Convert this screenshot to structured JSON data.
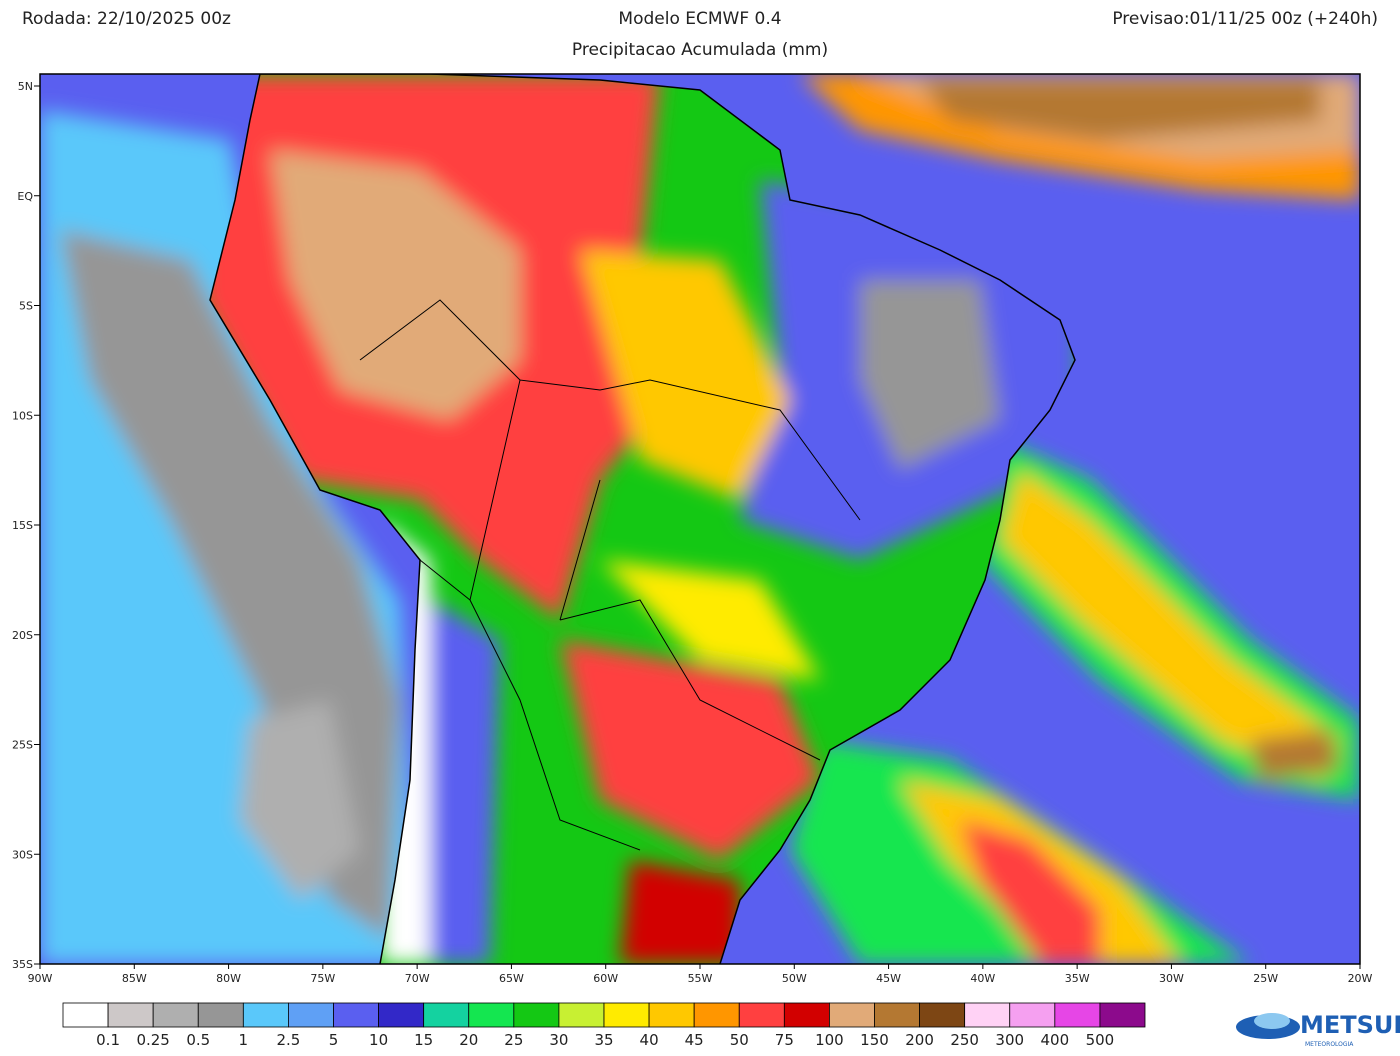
{
  "header": {
    "run": "Rodada: 22/10/2025 00z",
    "model": "Modelo ECMWF 0.4",
    "forecast": "Previsao:01/11/25 00z (+240h)",
    "subtitle": "Precipitacao Acumulada (mm)"
  },
  "map": {
    "lat_labels": [
      "5N",
      "EQ",
      "5S",
      "10S",
      "15S",
      "20S",
      "25S",
      "30S",
      "35S"
    ],
    "lon_labels": [
      "90W",
      "85W",
      "80W",
      "75W",
      "70W",
      "65W",
      "60W",
      "55W",
      "50W",
      "45W",
      "40W",
      "35W",
      "30W",
      "25W",
      "20W"
    ]
  },
  "legend": {
    "colors": [
      "#ffffff",
      "#cdc8c8",
      "#afafaf",
      "#969696",
      "#5ac8fa",
      "#5fa0f5",
      "#5a5ff0",
      "#3228c8",
      "#14d2a0",
      "#14e650",
      "#14c814",
      "#c8f032",
      "#ffeb00",
      "#ffc800",
      "#ff9600",
      "#ff4040",
      "#d20000",
      "#e1aa78",
      "#b47832",
      "#7d4614",
      "#ffd2f5",
      "#f5a0f0",
      "#e646e6",
      "#8c0a8c"
    ],
    "labels": [
      "0.1",
      "0.25",
      "0.5",
      "1",
      "2.5",
      "5",
      "10",
      "15",
      "20",
      "25",
      "30",
      "35",
      "40",
      "45",
      "50",
      "75",
      "100",
      "150",
      "200",
      "250",
      "300",
      "400",
      "500"
    ]
  },
  "logo": {
    "name": "METSUL",
    "tagline": "METEOROLOGIA"
  }
}
